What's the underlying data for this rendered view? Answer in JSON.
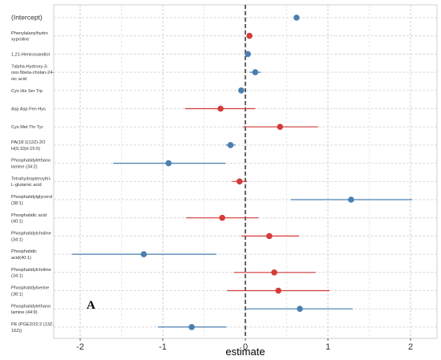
{
  "chart_data": {
    "type": "scatter",
    "subtype": "forest-plot",
    "title": "",
    "xlabel": "estimate",
    "ylabel": "",
    "xlim": [
      -2.3,
      2.2
    ],
    "xticks": [
      -2,
      -1,
      0,
      1,
      2
    ],
    "grid": true,
    "reference_line": 0,
    "panel_label": "A",
    "colors": {
      "positive": "#d43c3c",
      "negative": "#4a7fb0"
    },
    "rows": [
      {
        "label": [
          "(Intercept)"
        ],
        "estimate": 0.62,
        "ci": [
          0.62,
          0.62
        ],
        "color": "negative"
      },
      {
        "label": [
          "Phenylalanylhydro",
          "xyproline"
        ],
        "estimate": 0.05,
        "ci": [
          0.05,
          0.05
        ],
        "color": "positive"
      },
      {
        "label": [
          "1,21-Henicosandiol"
        ],
        "estimate": 0.03,
        "ci": [
          0.03,
          0.03
        ],
        "color": "negative"
      },
      {
        "label": [
          "7alpha-Hydroxy-3-",
          "oxo-5beta-cholan-24-",
          "oic acid"
        ],
        "estimate": 0.12,
        "ci": [
          0.05,
          0.19
        ],
        "color": "negative"
      },
      {
        "label": [
          "Cys His Ser Trp"
        ],
        "estimate": -0.05,
        "ci": [
          -0.05,
          -0.05
        ],
        "color": "negative"
      },
      {
        "label": [
          "Asp Asp Fen Hys"
        ],
        "estimate": -0.3,
        "ci": [
          -0.73,
          0.12
        ],
        "color": "positive"
      },
      {
        "label": [
          "Cys Met Thr Tyr"
        ],
        "estimate": 0.42,
        "ci": [
          -0.03,
          0.88
        ],
        "color": "positive"
      },
      {
        "label": [
          "PA(18:1(12Z)-2O",
          "H(9,10)/i-15:0)"
        ],
        "estimate": -0.18,
        "ci": [
          -0.24,
          -0.12
        ],
        "color": "negative"
      },
      {
        "label": [
          "Phosphatidylethano",
          "lamine (34:2)"
        ],
        "estimate": -0.93,
        "ci": [
          -1.6,
          -0.24
        ],
        "color": "negative"
      },
      {
        "label": [
          "Tetrahydropteroyltri-",
          "L-glutamic acid"
        ],
        "estimate": -0.07,
        "ci": [
          -0.16,
          0.02
        ],
        "color": "positive"
      },
      {
        "label": [
          "Phosphatidylglycerol",
          "(38:1)"
        ],
        "estimate": 1.28,
        "ci": [
          0.55,
          2.02
        ],
        "color": "negative"
      },
      {
        "label": [
          "Phosphatidic acid",
          "(40:1)"
        ],
        "estimate": -0.28,
        "ci": [
          -0.72,
          0.16
        ],
        "color": "positive"
      },
      {
        "label": [
          "Phosphatidylcholine",
          "(34:1)"
        ],
        "estimate": 0.29,
        "ci": [
          -0.05,
          0.65
        ],
        "color": "positive"
      },
      {
        "label": [
          "Phosphatidic",
          "acid(40:1)"
        ],
        "estimate": -1.23,
        "ci": [
          -2.1,
          -0.35
        ],
        "color": "negative"
      },
      {
        "label": [
          "Phosphatidylcholine",
          "(34:1)"
        ],
        "estimate": 0.35,
        "ci": [
          -0.14,
          0.85
        ],
        "color": "positive"
      },
      {
        "label": [
          "Phosphatidylserine",
          "(38:1)"
        ],
        "estimate": 0.4,
        "ci": [
          -0.22,
          1.02
        ],
        "color": "positive"
      },
      {
        "label": [
          "Phosphatidylethano",
          "lamine (44:9)"
        ],
        "estimate": 0.66,
        "ci": [
          0.0,
          1.3
        ],
        "color": "negative"
      },
      {
        "label": [
          "PE (PGE2/22:2 (13Z,",
          "16Z))"
        ],
        "estimate": -0.65,
        "ci": [
          -1.06,
          -0.23
        ],
        "color": "negative"
      }
    ]
  }
}
